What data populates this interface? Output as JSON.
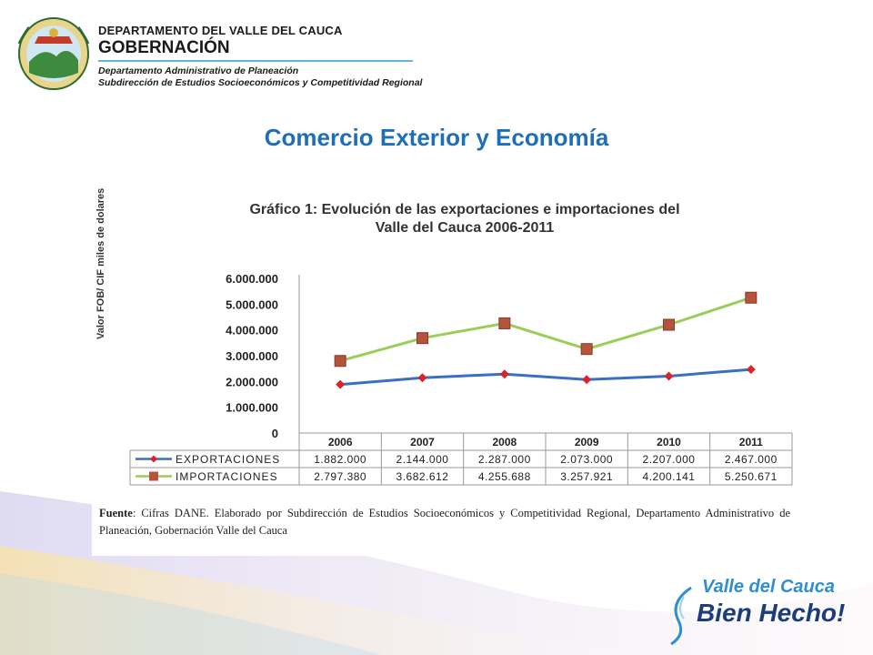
{
  "header": {
    "line1": "DEPARTAMENTO DEL VALLE DEL CAUCA",
    "line2": "GOBERNACIÓN",
    "line3": "Departamento  Administrativo de Planeación",
    "line4": "Subdirección de Estudios Socioeconómicos y Competitividad Regional"
  },
  "slide_title": "Comercio Exterior y Economía",
  "chart_data": {
    "type": "line",
    "title_line1": "Gráfico 1: Evolución de las exportaciones e importaciones del",
    "title_line2": "Valle del Cauca 2006-2011",
    "ylabel": "Valor FOB/ CIF miles de dolares",
    "ylim": [
      0,
      6000000
    ],
    "yticks": [
      "6.000.000",
      "5.000.000",
      "4.000.000",
      "3.000.000",
      "2.000.000",
      "1.000.000",
      "0"
    ],
    "categories": [
      "2006",
      "2007",
      "2008",
      "2009",
      "2010",
      "2011"
    ],
    "series": [
      {
        "name": "EXPORTACIONES",
        "values": [
          1882000,
          2144000,
          2287000,
          2073000,
          2207000,
          2467000
        ],
        "labels": [
          "1.882.000",
          "2.144.000",
          "2.287.000",
          "2.073.000",
          "2.207.000",
          "2.467.000"
        ],
        "color": "#3a6fc4",
        "marker": "diamond",
        "marker_color": "#d4262c"
      },
      {
        "name": "IMPORTACIONES",
        "values": [
          2797380,
          3682612,
          4255688,
          3257921,
          4200141,
          5250671
        ],
        "labels": [
          "2.797.380",
          "3.682.612",
          "4.255.688",
          "3.257.921",
          "4.200.141",
          "5.250.671"
        ],
        "color": "#9acd5a",
        "marker": "square",
        "marker_color": "#b5533d"
      }
    ],
    "grid": false,
    "legend": "data-table"
  },
  "source": {
    "label": "Fuente",
    "text": ": Cifras DANE. Elaborado por Subdirección de Estudios Socioeconómicos y Competitividad Regional, Departamento Administrativo de Planeación, Gobernación Valle del Cauca"
  },
  "brand": {
    "top": "Valle del Cauca",
    "bottom": "Bien Hecho!"
  }
}
